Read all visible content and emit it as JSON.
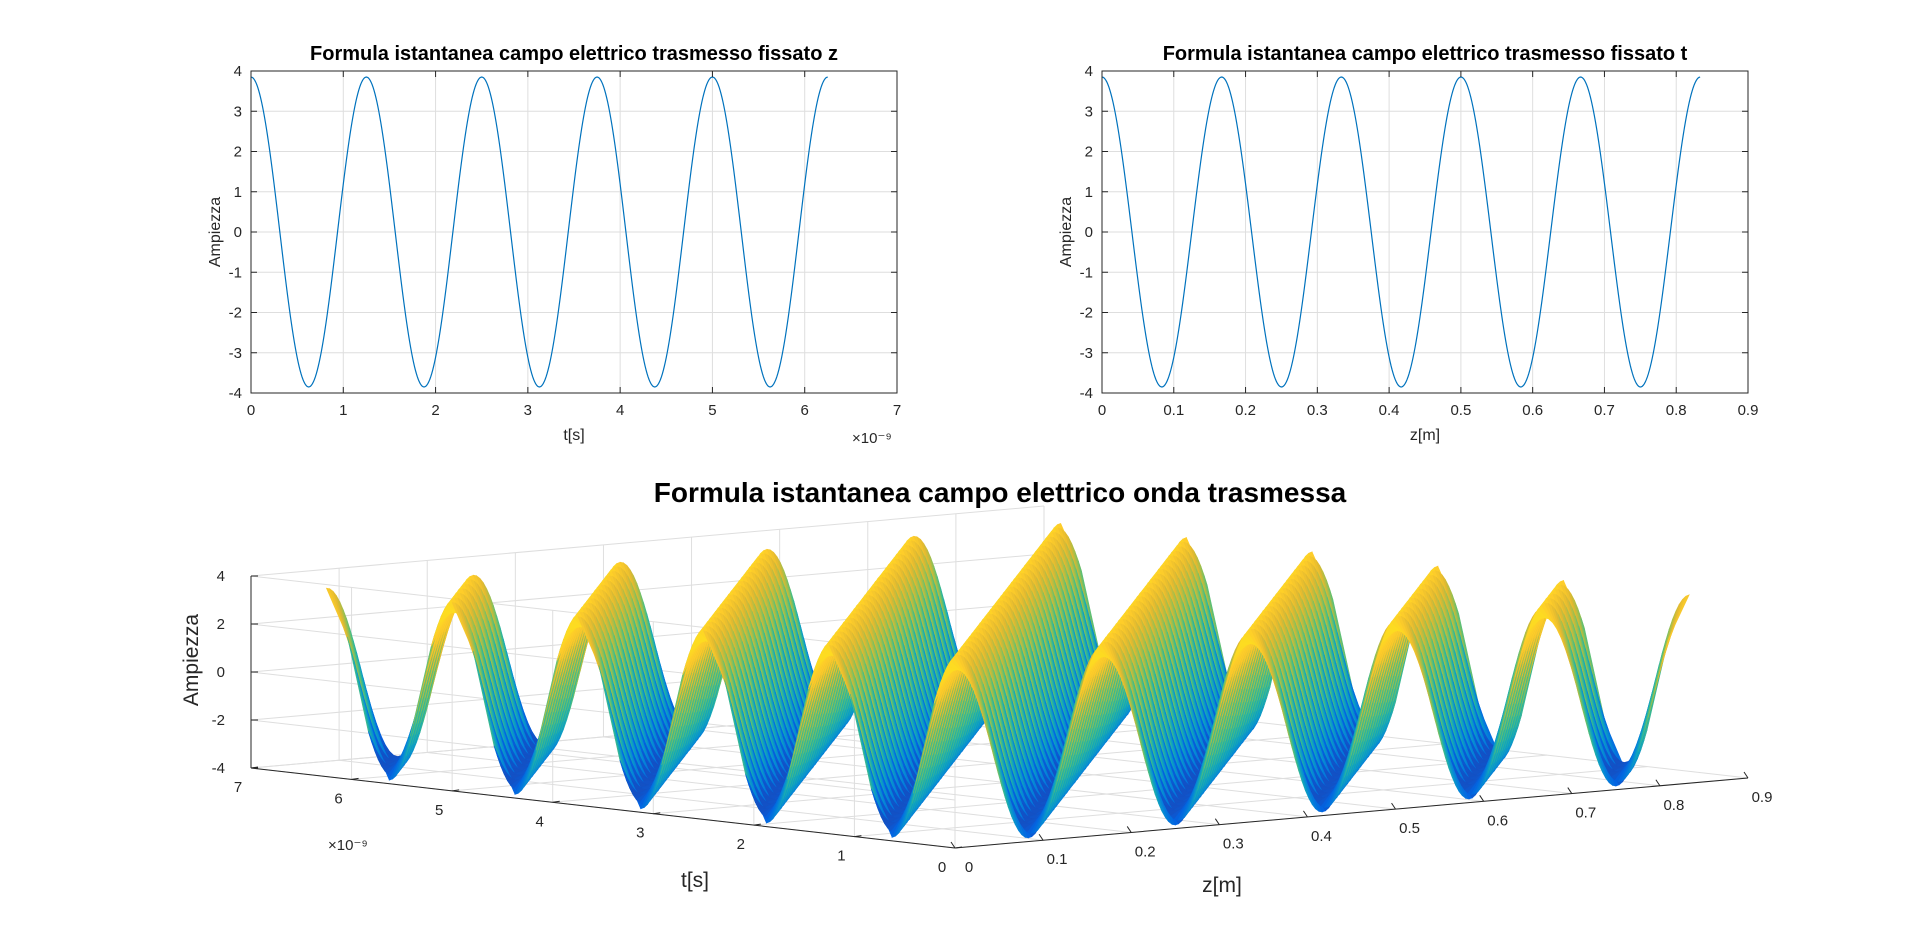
{
  "chart_data": [
    {
      "type": "line",
      "title": "Formula istantanea campo elettrico trasmesso fissato z",
      "xlabel": "t[s]",
      "ylabel": "Ampiezza",
      "x_exponent": "×10⁻⁹",
      "xlim": [
        0,
        7
      ],
      "ylim": [
        -4,
        4
      ],
      "xticks": [
        "0",
        "1",
        "2",
        "3",
        "4",
        "5",
        "6",
        "7"
      ],
      "yticks": [
        "4",
        "3",
        "2",
        "1",
        "0",
        "-1",
        "-2",
        "-3",
        "-4"
      ],
      "grid": true,
      "color": "#0072BD",
      "series": [
        {
          "function": "cosine",
          "amplitude": 3.85,
          "period": 1.25,
          "x_start": 0,
          "x_end": 6.25
        }
      ]
    },
    {
      "type": "line",
      "title": "Formula istantanea campo elettrico trasmesso fissato t",
      "xlabel": "z[m]",
      "ylabel": "Ampiezza",
      "xlim": [
        0,
        0.9
      ],
      "ylim": [
        -4,
        4
      ],
      "xticks": [
        "0",
        "0.1",
        "0.2",
        "0.3",
        "0.4",
        "0.5",
        "0.6",
        "0.7",
        "0.8",
        "0.9"
      ],
      "yticks": [
        "4",
        "3",
        "2",
        "1",
        "0",
        "-1",
        "-2",
        "-3",
        "-4"
      ],
      "grid": true,
      "color": "#0072BD",
      "series": [
        {
          "function": "cosine",
          "amplitude": 3.85,
          "period": 0.1667,
          "x_start": 0,
          "x_end": 0.8333
        }
      ]
    },
    {
      "type": "surface",
      "title": "Formula istantanea campo elettrico onda trasmessa",
      "xlabel": "z[m]",
      "ylabel": "t[s]",
      "zlabel": "Ampiezza",
      "y_exponent": "×10⁻⁹",
      "xlim": [
        0,
        0.9
      ],
      "ylim": [
        0,
        7
      ],
      "zlim": [
        -4,
        4
      ],
      "xticks": [
        "0",
        "0.1",
        "0.2",
        "0.3",
        "0.4",
        "0.5",
        "0.6",
        "0.7",
        "0.8",
        "0.9"
      ],
      "yticks": [
        "0",
        "1",
        "2",
        "3",
        "4",
        "5",
        "6",
        "7"
      ],
      "zticks": [
        "4",
        "2",
        "0",
        "-2",
        "-4"
      ],
      "grid": true,
      "colormap": "parula",
      "surface": {
        "amplitude": 3.85,
        "z_wavelength": 0.1667,
        "t_period": 1.25,
        "z_start": 0,
        "z_end": 0.8333,
        "t_start": 0,
        "t_end": 6.25,
        "view_azimuth_deg": 16.25,
        "view_elevation_deg": 5
      }
    }
  ]
}
